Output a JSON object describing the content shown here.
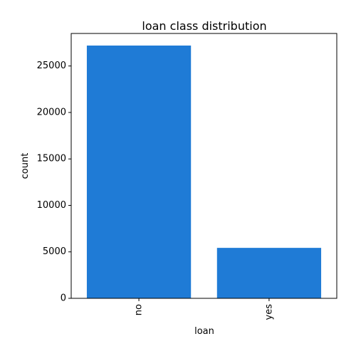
{
  "chart_data": {
    "type": "bar",
    "title": "loan class distribution",
    "xlabel": "loan",
    "ylabel": "count",
    "categories": [
      "no",
      "yes"
    ],
    "values": [
      27200,
      5430
    ],
    "ylim": [
      0,
      28500
    ],
    "yticks": [
      0,
      5000,
      10000,
      15000,
      20000,
      25000
    ],
    "bar_color": "#1f7bd6",
    "grid": false,
    "legend": "none"
  }
}
